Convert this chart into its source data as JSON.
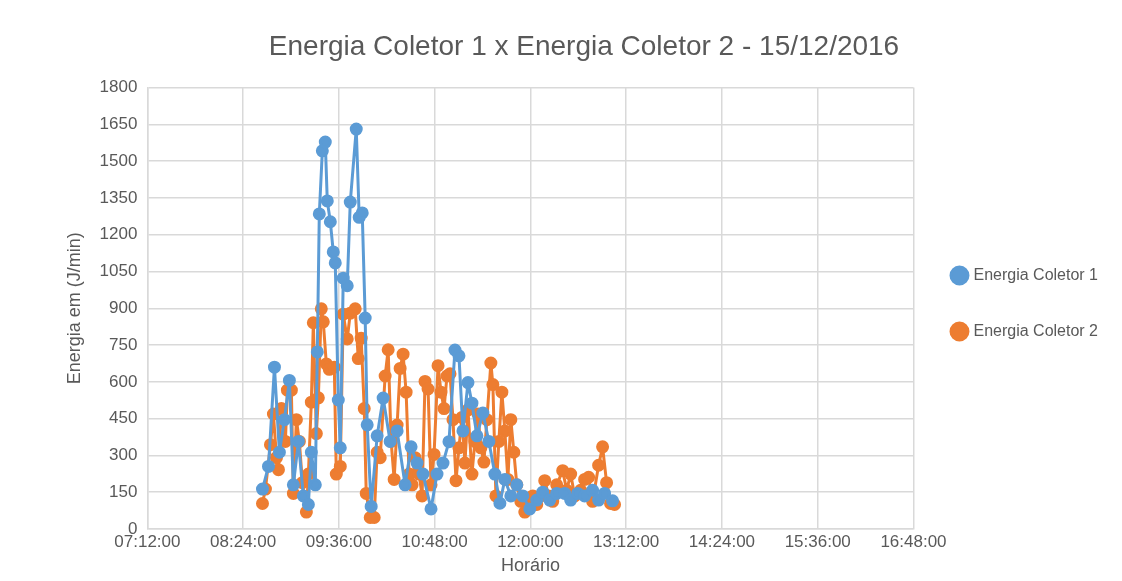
{
  "chart_data": {
    "type": "line",
    "title": "Energia Coletor 1 x Energia Coletor 2 - 15/12/2016",
    "xlabel": "Horário",
    "ylabel": "Energia em (J/min)",
    "xlim": [
      7.2,
      16.8
    ],
    "xticks": [
      {
        "value": 7.2,
        "label": "07:12:00"
      },
      {
        "value": 8.4,
        "label": "08:24:00"
      },
      {
        "value": 9.6,
        "label": "09:36:00"
      },
      {
        "value": 10.8,
        "label": "10:48:00"
      },
      {
        "value": 12,
        "label": "12:00:00"
      },
      {
        "value": 13.2,
        "label": "13:12:00"
      },
      {
        "value": 14.4,
        "label": "14:24:00"
      },
      {
        "value": 15.6,
        "label": "15:36:00"
      },
      {
        "value": 16.8,
        "label": "16:48:00"
      }
    ],
    "ylim": [
      0,
      1800
    ],
    "yticks": [
      0,
      150,
      300,
      450,
      600,
      750,
      900,
      1050,
      1200,
      1350,
      1500,
      1650,
      1800
    ],
    "grid": true,
    "legend": "right",
    "marker": "circle",
    "line_style": "solid",
    "series": [
      {
        "name": "Energia Coletor 1",
        "color": "#5b9bd5",
        "x": [
          8.642,
          8.717,
          8.792,
          8.854,
          8.917,
          8.979,
          9.029,
          9.092,
          9.154,
          9.217,
          9.254,
          9.304,
          9.329,
          9.354,
          9.392,
          9.429,
          9.454,
          9.492,
          9.529,
          9.554,
          9.592,
          9.617,
          9.654,
          9.704,
          9.742,
          9.817,
          9.854,
          9.892,
          9.929,
          9.954,
          10.004,
          10.079,
          10.154,
          10.242,
          10.329,
          10.429,
          10.504,
          10.579,
          10.654,
          10.754,
          10.829,
          10.904,
          10.979,
          11.054,
          11.104,
          11.154,
          11.217,
          11.267,
          11.329,
          11.404,
          11.479,
          11.554,
          11.617,
          11.679,
          11.754,
          11.829,
          11.904,
          11.992,
          12.079,
          12.154,
          12.242,
          12.329,
          12.429,
          12.504,
          12.592,
          12.679,
          12.779,
          12.854,
          12.929,
          13.029
        ],
        "values": [
          163,
          255,
          660,
          313,
          446,
          606,
          180,
          357,
          135,
          100,
          313,
          180,
          722,
          1285,
          1542,
          1578,
          1338,
          1253,
          1130,
          1085,
          526,
          331,
          1023,
          992,
          1333,
          1631,
          1271,
          1289,
          860,
          425,
          92,
          380,
          534,
          357,
          400,
          180,
          335,
          269,
          224,
          82,
          224,
          269,
          356,
          730,
          706,
          400,
          597,
          513,
          380,
          473,
          357,
          224,
          105,
          202,
          135,
          180,
          135,
          82,
          118,
          150,
          118,
          145,
          145,
          118,
          145,
          135,
          158,
          118,
          145,
          115
        ]
      },
      {
        "name": "Energia Coletor 2",
        "color": "#ed7d31",
        "x": [
          8.642,
          8.679,
          8.742,
          8.779,
          8.817,
          8.842,
          8.879,
          8.929,
          8.954,
          9.004,
          9.029,
          9.067,
          9.104,
          9.142,
          9.192,
          9.217,
          9.254,
          9.279,
          9.317,
          9.342,
          9.379,
          9.404,
          9.442,
          9.479,
          9.542,
          9.567,
          9.617,
          9.654,
          9.704,
          9.742,
          9.804,
          9.842,
          9.879,
          9.917,
          9.942,
          9.992,
          10.042,
          10.079,
          10.117,
          10.179,
          10.217,
          10.254,
          10.292,
          10.329,
          10.367,
          10.404,
          10.442,
          10.479,
          10.517,
          10.554,
          10.604,
          10.642,
          10.679,
          10.717,
          10.754,
          10.792,
          10.842,
          10.879,
          10.917,
          10.954,
          10.992,
          11.029,
          11.067,
          11.104,
          11.142,
          11.179,
          11.217,
          11.267,
          11.304,
          11.342,
          11.379,
          11.417,
          11.454,
          11.504,
          11.529,
          11.567,
          11.604,
          11.642,
          11.679,
          11.717,
          11.754,
          11.792,
          11.829,
          11.879,
          11.929,
          11.979,
          12.029,
          12.079,
          12.129,
          12.179,
          12.229,
          12.279,
          12.329,
          12.404,
          12.454,
          12.504,
          12.554,
          12.629,
          12.679,
          12.729,
          12.779,
          12.854,
          12.904,
          12.954,
          13.004,
          13.054
        ],
        "values": [
          104,
          163,
          344,
          469,
          291,
          242,
          491,
          357,
          566,
          566,
          145,
          446,
          357,
          189,
          69,
          224,
          517,
          841,
          389,
          535,
          898,
          845,
          673,
          651,
          660,
          224,
          255,
          876,
          775,
          880,
          898,
          695,
          778,
          491,
          145,
          47,
          47,
          313,
          291,
          624,
          731,
          357,
          202,
          424,
          655,
          713,
          558,
          224,
          180,
          291,
          224,
          135,
          602,
          571,
          180,
          304,
          666,
          558,
          491,
          624,
          633,
          446,
          197,
          331,
          455,
          269,
          486,
          224,
          357,
          469,
          331,
          273,
          446,
          677,
          589,
          135,
          357,
          558,
          400,
          202,
          446,
          313,
          180,
          113,
          69,
          100,
          135,
          100,
          135,
          197,
          135,
          113,
          180,
          238,
          158,
          224,
          135,
          158,
          202,
          211,
          113,
          260,
          335,
          189,
          104,
          100
        ]
      }
    ]
  }
}
